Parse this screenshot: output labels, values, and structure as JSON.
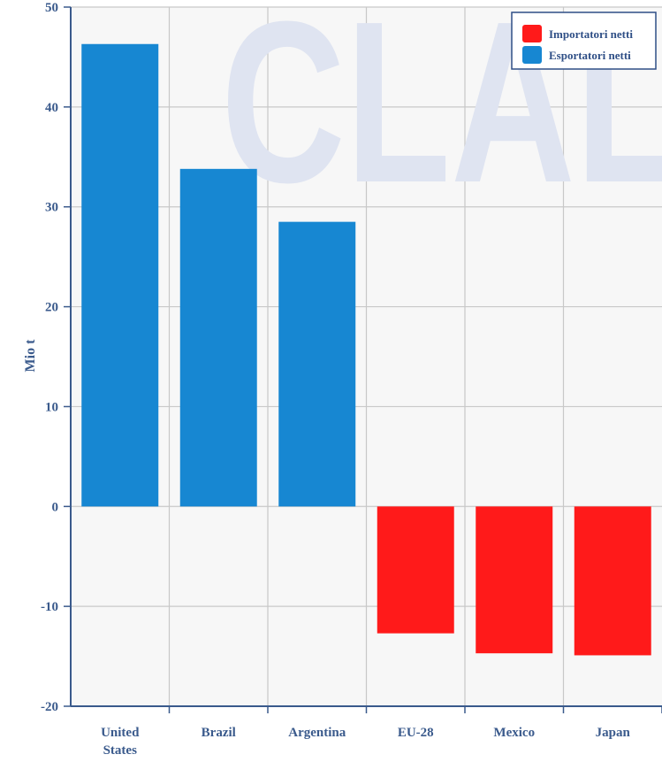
{
  "chart_data": {
    "type": "bar",
    "ylabel": "Mio t",
    "ylim": [
      -20,
      50
    ],
    "yticks": [
      -20,
      -10,
      0,
      10,
      20,
      30,
      40,
      50
    ],
    "grid": true,
    "legend_placement": "top-right",
    "watermark": "CLAL",
    "categories": [
      {
        "lines": [
          "United",
          "States"
        ],
        "value": 46.3,
        "series": "Esportatori netti"
      },
      {
        "lines": [
          "Brazil"
        ],
        "value": 33.8,
        "series": "Esportatori netti"
      },
      {
        "lines": [
          "Argentina"
        ],
        "value": 28.5,
        "series": "Esportatori netti"
      },
      {
        "lines": [
          "EU-28"
        ],
        "value": -12.7,
        "series": "Importatori netti"
      },
      {
        "lines": [
          "Mexico"
        ],
        "value": -14.7,
        "series": "Importatori netti"
      },
      {
        "lines": [
          "Japan"
        ],
        "value": -14.9,
        "series": "Importatori netti"
      }
    ],
    "series": [
      {
        "name": "Importatori netti",
        "color": "#ff1a1a"
      },
      {
        "name": "Esportatori netti",
        "color": "#1787d2"
      }
    ]
  }
}
